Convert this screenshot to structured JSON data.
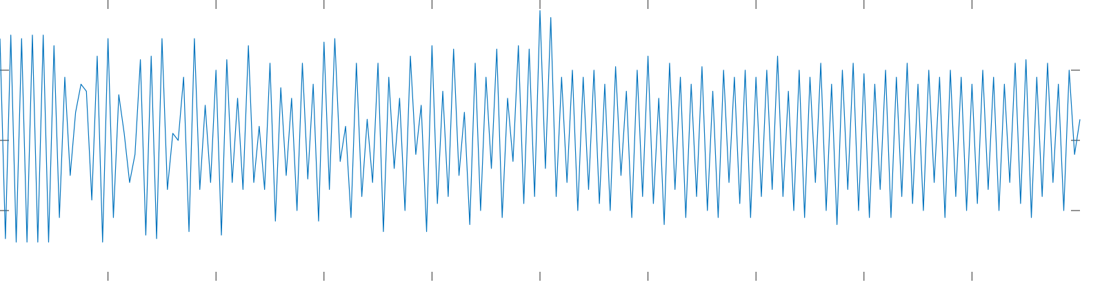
{
  "chart_data": {
    "type": "line",
    "x": [
      0,
      0.05,
      0.1,
      0.15,
      0.2,
      0.25,
      0.3,
      0.35,
      0.4,
      0.45,
      0.5,
      0.55,
      0.6,
      0.65,
      0.7,
      0.75,
      0.8,
      0.85,
      0.9,
      0.95,
      1,
      1.05,
      1.1,
      1.15,
      1.2,
      1.25,
      1.3,
      1.35,
      1.4,
      1.45,
      1.5,
      1.55,
      1.6,
      1.65,
      1.7,
      1.75,
      1.8,
      1.85,
      1.9,
      1.95,
      2,
      2.05,
      2.1,
      2.15,
      2.2,
      2.25,
      2.3,
      2.35,
      2.4,
      2.45,
      2.5,
      2.55,
      2.6,
      2.65,
      2.7,
      2.75,
      2.8,
      2.85,
      2.9,
      2.95,
      3,
      3.05,
      3.1,
      3.15,
      3.2,
      3.25,
      3.3,
      3.35,
      3.4,
      3.45,
      3.5,
      3.55,
      3.6,
      3.65,
      3.7,
      3.75,
      3.8,
      3.85,
      3.9,
      3.95,
      4,
      4.05,
      4.1,
      4.15,
      4.2,
      4.25,
      4.3,
      4.35,
      4.4,
      4.45,
      4.5,
      4.55,
      4.6,
      4.65,
      4.7,
      4.75,
      4.8,
      4.85,
      4.9,
      4.95,
      5,
      5.05,
      5.1,
      5.15,
      5.2,
      5.25,
      5.3,
      5.35,
      5.4,
      5.45,
      5.5,
      5.55,
      5.6,
      5.65,
      5.7,
      5.75,
      5.8,
      5.85,
      5.9,
      5.95,
      6,
      6.05,
      6.1,
      6.15,
      6.2,
      6.25,
      6.3,
      6.35,
      6.4,
      6.45,
      6.5,
      6.55,
      6.6,
      6.65,
      6.7,
      6.75,
      6.8,
      6.85,
      6.9,
      6.95,
      7,
      7.05,
      7.1,
      7.15,
      7.2,
      7.25,
      7.3,
      7.35,
      7.4,
      7.45,
      7.5,
      7.55,
      7.6,
      7.65,
      7.7,
      7.75,
      7.8,
      7.85,
      7.9,
      7.95,
      8,
      8.05,
      8.1,
      8.15,
      8.2,
      8.25,
      8.3,
      8.35,
      8.4,
      8.45,
      8.5,
      8.55,
      8.6,
      8.65,
      8.7,
      8.75,
      8.8,
      8.85,
      8.9,
      8.95,
      9,
      9.05,
      9.1,
      9.15,
      9.2,
      9.25,
      9.3,
      9.35,
      9.4,
      9.45,
      9.5,
      9.55,
      9.6,
      9.65,
      9.7,
      9.75,
      9.8,
      9.85,
      9.9,
      9.95,
      10
    ],
    "values": [
      1.45,
      -1.4,
      1.5,
      -1.45,
      1.45,
      -1.45,
      1.5,
      -1.45,
      1.5,
      -1.45,
      1.35,
      -1.1,
      0.9,
      -0.5,
      0.4,
      0.8,
      0.7,
      -0.85,
      1.2,
      -1.45,
      1.45,
      -1.1,
      0.65,
      0.1,
      -0.6,
      -0.2,
      1.15,
      -1.35,
      1.2,
      -1.4,
      1.45,
      -0.7,
      0.1,
      0,
      0.9,
      -1.3,
      1.45,
      -0.7,
      0.5,
      -0.6,
      1,
      -1.35,
      1.15,
      -0.6,
      0.6,
      -0.7,
      1.35,
      -0.6,
      0.2,
      -0.7,
      1.1,
      -1.15,
      0.75,
      -0.5,
      0.6,
      -1,
      1.1,
      -0.55,
      0.8,
      -1.15,
      1.4,
      -0.7,
      1.45,
      -0.3,
      0.2,
      -1.1,
      1.1,
      -0.8,
      0.3,
      -0.6,
      1.1,
      -1.3,
      0.9,
      -0.4,
      0.6,
      -1,
      1.2,
      -0.2,
      0.5,
      -1.3,
      1.35,
      -0.9,
      0.7,
      -0.8,
      1.3,
      -0.5,
      0.4,
      -1.2,
      1.1,
      -1,
      0.9,
      -0.4,
      1.3,
      -1.1,
      0.6,
      -0.3,
      1.35,
      -0.9,
      1.3,
      -0.8,
      1.85,
      -0.4,
      1.75,
      -0.8,
      0.9,
      -0.6,
      1,
      -1,
      0.9,
      -0.7,
      1,
      -0.9,
      0.8,
      -1,
      1.05,
      -0.5,
      0.7,
      -1.1,
      1,
      -0.8,
      1.2,
      -0.9,
      0.6,
      -1.2,
      1.1,
      -0.7,
      0.9,
      -1.1,
      0.8,
      -0.8,
      1.05,
      -1,
      0.7,
      -1.1,
      1,
      -0.6,
      0.9,
      -0.9,
      1,
      -1.1,
      0.9,
      -0.8,
      1,
      -0.7,
      1.2,
      -0.8,
      0.7,
      -1,
      1,
      -1.1,
      0.9,
      -0.6,
      1.1,
      -1,
      0.8,
      -1.2,
      1,
      -0.7,
      1.1,
      -1,
      0.95,
      -1.1,
      0.8,
      -0.7,
      1,
      -1.1,
      0.9,
      -0.8,
      1.1,
      -0.9,
      0.8,
      -1,
      1,
      -0.6,
      0.9,
      -1.1,
      1,
      -0.8,
      0.9,
      -1,
      0.8,
      -0.9,
      1,
      -0.7,
      0.9,
      -1,
      0.8,
      -0.6,
      1.1,
      -0.9,
      1.15,
      -1.1,
      0.9,
      -0.8,
      1.1,
      -0.6,
      0.8,
      -1,
      1,
      -0.2,
      0.3
    ],
    "color": "#0072bd",
    "xlim": [
      0,
      10
    ],
    "xticks": [
      1,
      2,
      3,
      4,
      5,
      6,
      7,
      8,
      9
    ],
    "ylim": [
      -2,
      2
    ],
    "yticks": [
      -1,
      0,
      1
    ]
  }
}
